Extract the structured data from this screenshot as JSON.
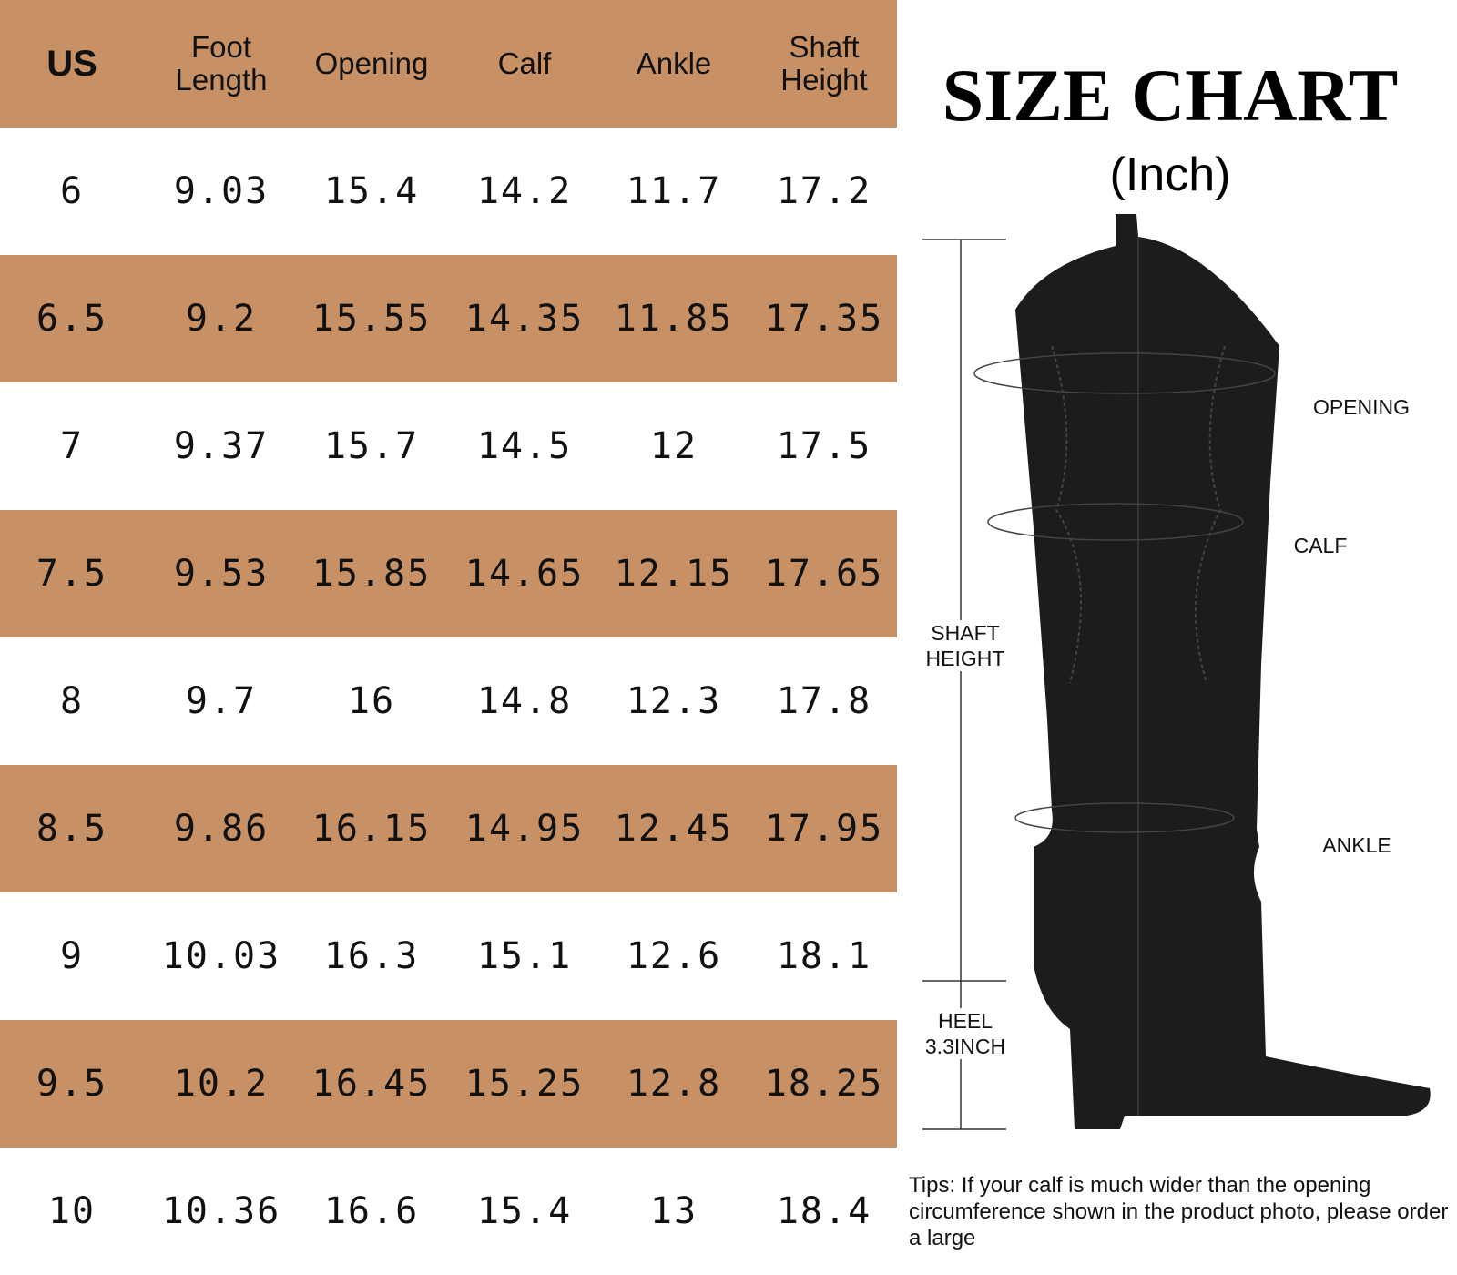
{
  "title": "SIZE CHART",
  "unit": "(Inch)",
  "table": {
    "header": [
      "US",
      "Foot Length",
      "Opening",
      "Calf",
      "Ankle",
      "Shaft Height"
    ],
    "rows": [
      [
        "6",
        "9.03",
        "15.4",
        "14.2",
        "11.7",
        "17.2"
      ],
      [
        "6.5",
        "9.2",
        "15.55",
        "14.35",
        "11.85",
        "17.35"
      ],
      [
        "7",
        "9.37",
        "15.7",
        "14.5",
        "12",
        "17.5"
      ],
      [
        "7.5",
        "9.53",
        "15.85",
        "14.65",
        "12.15",
        "17.65"
      ],
      [
        "8",
        "9.7",
        "16",
        "14.8",
        "12.3",
        "17.8"
      ],
      [
        "8.5",
        "9.86",
        "16.15",
        "14.95",
        "12.45",
        "17.95"
      ],
      [
        "9",
        "10.03",
        "16.3",
        "15.1",
        "12.6",
        "18.1"
      ],
      [
        "9.5",
        "10.2",
        "16.45",
        "15.25",
        "12.8",
        "18.25"
      ],
      [
        "10",
        "10.36",
        "16.6",
        "15.4",
        "13",
        "18.4"
      ]
    ]
  },
  "labels": {
    "opening": "OPENING",
    "calf": "CALF",
    "ankle": "ANKLE",
    "shaft_height": "SHAFT HEIGHT",
    "heel": "HEEL 3.3INCH"
  },
  "tips": "Tips: If your calf is much wider than the opening circumference shown in the product photo, please order a large"
}
